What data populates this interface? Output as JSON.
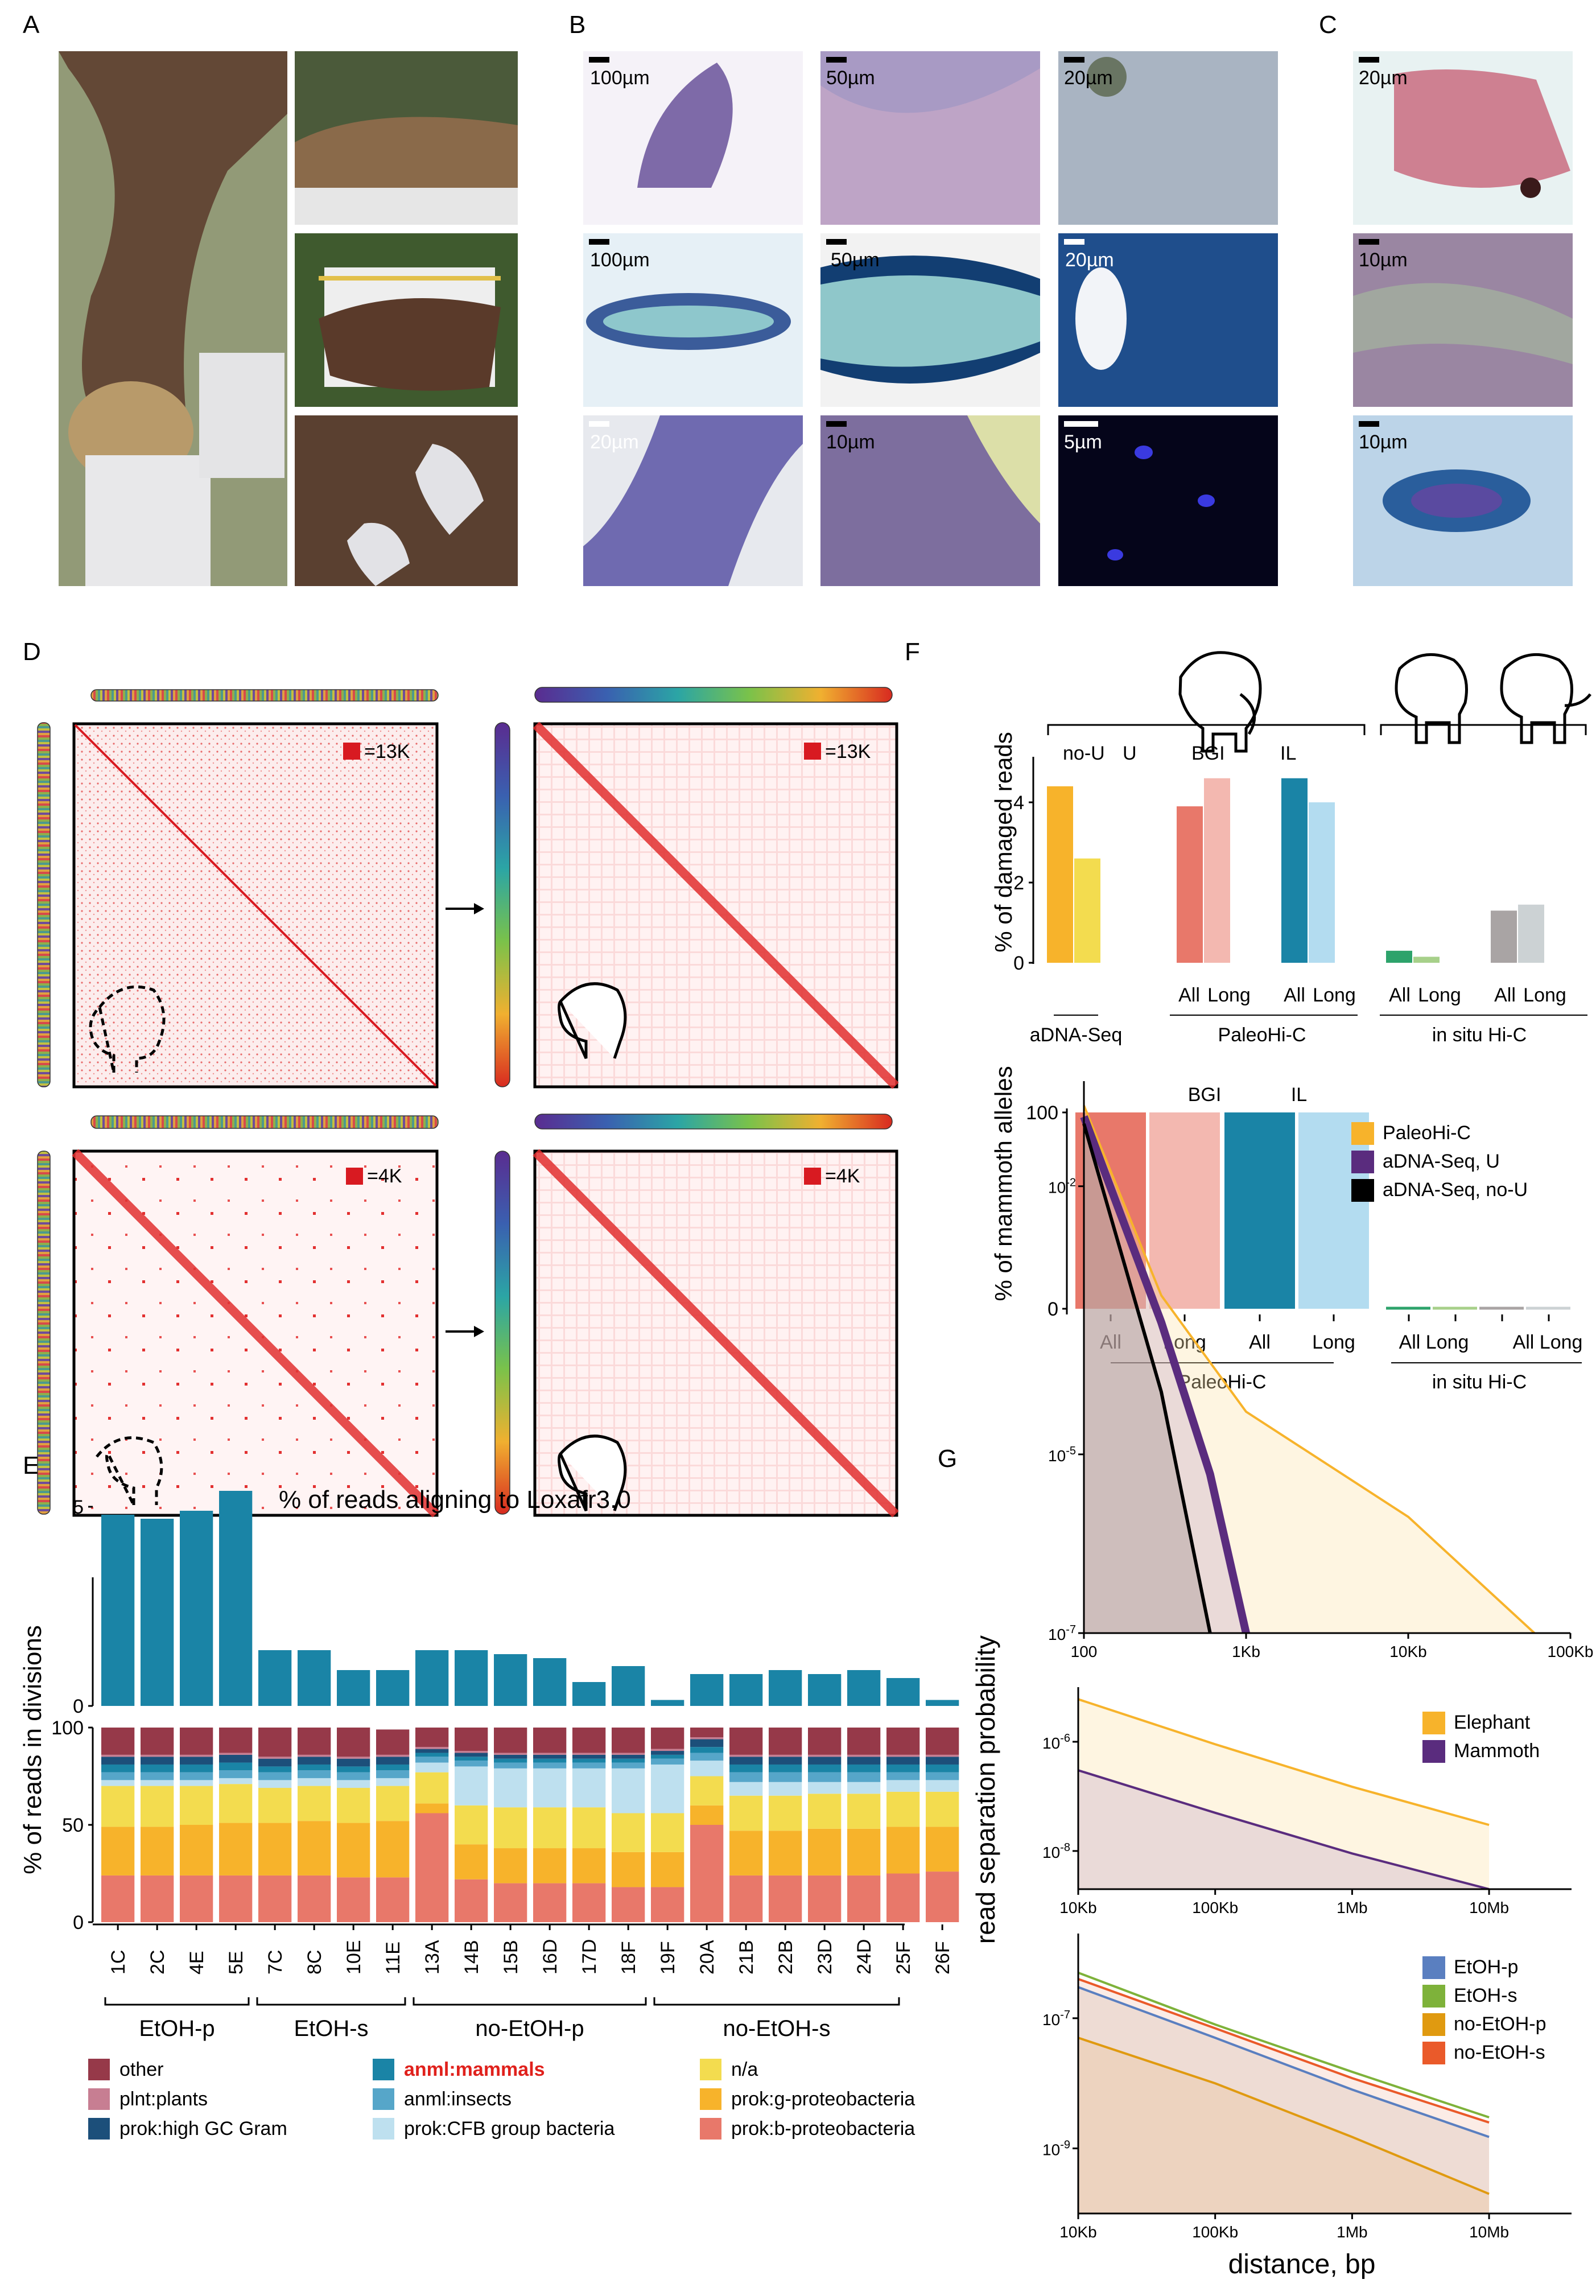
{
  "panel_labels": {
    "A": "A",
    "B": "B",
    "C": "C",
    "D": "D",
    "E": "E",
    "F": "F",
    "G": "G"
  },
  "colors": {
    "orange": "#F7B32B",
    "yellow": "#F3DC4F",
    "salmon": "#E8786A",
    "pink": "#F3B8B0",
    "teal": "#1A84A6",
    "lightblue": "#B3DCF0",
    "green": "#2DA36B",
    "lightgreen": "#A7D08A",
    "grey": "#A9A4A4",
    "lightgrey": "#CCD2D4",
    "maroon": "#963949",
    "purple": "#5A2C7E",
    "hic_red": "#D81A21",
    "blue": "#5A7FC0",
    "olive": "#7EB23A",
    "red_orange": "#EA5A2A"
  },
  "panelB": {
    "scalebars": [
      "100µm",
      "50µm",
      "20µm",
      "100µm",
      "50µm",
      "20µm",
      "20µm",
      "10µm",
      "5µm"
    ]
  },
  "panelC": {
    "scalebars": [
      "20µm",
      "10µm",
      "10µm"
    ]
  },
  "panelD": {
    "legend": [
      "=13K",
      "=13K",
      "=4K",
      "=4K"
    ]
  },
  "panelE": {
    "top_title": "% of reads aligning to Loxafr3.0",
    "ylabel": "% of reads in divisions",
    "groups": [
      "EtOH-p",
      "EtOH-s",
      "no-EtOH-p",
      "no-EtOH-s"
    ],
    "legend": [
      {
        "label": "other",
        "color": "#963949",
        "highlight": false
      },
      {
        "label": "plnt:plants",
        "color": "#C77E92",
        "highlight": false
      },
      {
        "label": "prok:high GC Gram",
        "color": "#1C4F7A",
        "highlight": false
      },
      {
        "label": "anml:mammals",
        "color": "#1A84A6",
        "highlight": true
      },
      {
        "label": "anml:insects",
        "color": "#56A6C9",
        "highlight": false
      },
      {
        "label": "prok:CFB group bacteria",
        "color": "#BEE0EF",
        "highlight": false
      },
      {
        "label": "n/a",
        "color": "#F3DC4F",
        "highlight": false
      },
      {
        "label": "prok:g-proteobacteria",
        "color": "#F7B32B",
        "highlight": false
      },
      {
        "label": "prok:b-proteobacteria",
        "color": "#E8786A",
        "highlight": false
      }
    ]
  },
  "panelF": {
    "top_ylabel": "% of damaged reads",
    "bottom_ylabel": "% of mammoth alleles",
    "subgroup_labels": [
      "no-U",
      "U",
      "BGI",
      "IL"
    ],
    "bottom_subgroup_labels": [
      "BGI",
      "IL"
    ],
    "top_xlabels": [
      "All",
      "Long",
      "All",
      "Long",
      "All",
      "Long",
      "All",
      "Long"
    ],
    "top_groups": [
      "aDNA-Seq",
      "PaleoHi-C",
      "in situ Hi-C"
    ],
    "bottom_xlabels": [
      "All",
      "Long",
      "All",
      "Long",
      "All",
      "Long",
      "All",
      "Long"
    ],
    "bottom_groups": [
      "PaleoHi-C",
      "in situ Hi-C"
    ]
  },
  "panelG": {
    "ylabel": "read separation probability",
    "xlabel": "distance, bp",
    "legend1": [
      "PaleoHi-C",
      "aDNA-Seq, U",
      "aDNA-Seq, no-U"
    ],
    "legend2": [
      "Elephant",
      "Mammoth"
    ],
    "legend3": [
      "EtOH-p",
      "EtOH-s",
      "no-EtOH-p",
      "no-EtOH-s"
    ],
    "x1": [
      "100",
      "1Kb",
      "10Kb",
      "100Kb"
    ],
    "y1": [
      {
        "b": "10",
        "e": "-2"
      },
      {
        "b": "10",
        "e": "-5"
      },
      {
        "b": "10",
        "e": "-7"
      }
    ],
    "x2": [
      "10Kb",
      "100Kb",
      "1Mb",
      "10Mb"
    ],
    "y2": [
      {
        "b": "10",
        "e": "-6"
      },
      {
        "b": "10",
        "e": "-8"
      }
    ],
    "x3": [
      "10Kb",
      "100Kb",
      "1Mb",
      "10Mb"
    ],
    "y3": [
      {
        "b": "10",
        "e": "-7"
      },
      {
        "b": "10",
        "e": "-9"
      }
    ]
  },
  "chart_data": [
    {
      "type": "bar",
      "panel": "E-top",
      "title": "% of reads aligning to Loxafr3.0",
      "categories": [
        "1C",
        "2C",
        "4E",
        "5E",
        "7C",
        "8C",
        "10E",
        "11E",
        "13A",
        "14B",
        "15B",
        "16D",
        "17D",
        "18F",
        "19F",
        "20A",
        "21B",
        "22B",
        "23D",
        "24D",
        "25F",
        "26F"
      ],
      "values": [
        4.8,
        4.7,
        4.9,
        5.4,
        1.4,
        1.4,
        0.9,
        0.9,
        1.4,
        1.4,
        1.3,
        1.2,
        0.6,
        1.0,
        0.15,
        0.8,
        0.8,
        0.9,
        0.8,
        0.9,
        0.7,
        0.15
      ],
      "ylim": [
        0,
        6
      ],
      "yticks": [
        0,
        5
      ]
    },
    {
      "type": "bar",
      "stacked": true,
      "panel": "E-bottom",
      "ylabel": "% of reads in divisions",
      "categories": [
        "1C",
        "2C",
        "4E",
        "5E",
        "7C",
        "8C",
        "10E",
        "11E",
        "13A",
        "14B",
        "15B",
        "16D",
        "17D",
        "18F",
        "19F",
        "20A",
        "21B",
        "22B",
        "23D",
        "24D",
        "25F",
        "26F"
      ],
      "ylim": [
        0,
        100
      ],
      "yticks": [
        0,
        50,
        100
      ],
      "series": [
        {
          "name": "prok:b-proteobacteria",
          "values": [
            24,
            24,
            24,
            24,
            24,
            24,
            23,
            23,
            56,
            22,
            20,
            20,
            20,
            18,
            18,
            50,
            24,
            24,
            24,
            24,
            25,
            26
          ]
        },
        {
          "name": "prok:g-proteobacteria",
          "values": [
            25,
            25,
            26,
            27,
            27,
            28,
            28,
            29,
            5,
            18,
            18,
            18,
            18,
            18,
            18,
            10,
            23,
            23,
            24,
            24,
            24,
            23
          ]
        },
        {
          "name": "n/a",
          "values": [
            21,
            21,
            20,
            20,
            18,
            18,
            18,
            18,
            16,
            20,
            21,
            21,
            21,
            20,
            20,
            15,
            18,
            18,
            18,
            18,
            18,
            18
          ]
        },
        {
          "name": "prok:CFB group bacteria",
          "values": [
            3,
            3,
            3,
            3,
            4,
            4,
            4,
            4,
            5,
            20,
            20,
            20,
            20,
            23,
            25,
            8,
            7,
            7,
            6,
            6,
            6,
            6
          ]
        },
        {
          "name": "anml:insects",
          "values": [
            4,
            4,
            4,
            4,
            4,
            4,
            4,
            4,
            3,
            3,
            3,
            3,
            3,
            3,
            3,
            4,
            5,
            5,
            5,
            5,
            4,
            4
          ]
        },
        {
          "name": "anml:mammals",
          "values": [
            4,
            4,
            4,
            4,
            3,
            3,
            3,
            3,
            2,
            2,
            2,
            2,
            2,
            2,
            2,
            3,
            4,
            4,
            4,
            4,
            4,
            4
          ]
        },
        {
          "name": "prok:high GC Gram",
          "values": [
            4,
            4,
            4,
            4,
            4,
            4,
            4,
            4,
            2,
            2,
            2,
            2,
            2,
            2,
            2,
            4,
            4,
            4,
            4,
            4,
            4,
            4
          ]
        },
        {
          "name": "plnt:plants",
          "values": [
            1,
            1,
            1,
            1,
            1,
            1,
            1,
            1,
            1,
            1,
            1,
            1,
            1,
            1,
            1,
            1,
            1,
            1,
            1,
            1,
            1,
            1
          ]
        },
        {
          "name": "other",
          "values": [
            14,
            14,
            14,
            13,
            15,
            14,
            15,
            13,
            10,
            12,
            13,
            13,
            13,
            13,
            11,
            5,
            14,
            14,
            14,
            14,
            14,
            14
          ]
        }
      ]
    },
    {
      "type": "bar",
      "panel": "F-top",
      "ylabel": "% of damaged reads",
      "values": [
        4.4,
        2.6,
        3.9,
        4.6,
        4.6,
        4.0,
        0.3,
        0.15,
        1.3,
        1.45
      ],
      "ylim": [
        0,
        5
      ],
      "yticks": [
        0,
        2,
        4
      ]
    },
    {
      "type": "bar",
      "panel": "F-bottom",
      "ylabel": "% of mammoth alleles",
      "values": [
        100,
        100,
        100,
        100,
        1,
        1,
        1,
        1
      ],
      "ylim": [
        0,
        100
      ],
      "yticks": [
        0,
        100
      ]
    },
    {
      "type": "line",
      "panel": "G-1",
      "series": [
        {
          "name": "PaleoHi-C",
          "x": [
            100,
            300,
            1000,
            10000,
            60000
          ],
          "y": [
            0.08,
            0.0006,
            3e-05,
            2e-06,
            1e-07
          ]
        },
        {
          "name": "aDNA-Seq, U",
          "x": [
            100,
            300,
            600,
            1000
          ],
          "y": [
            0.06,
            0.0003,
            6e-06,
            1e-07
          ]
        },
        {
          "name": "aDNA-Seq, no-U",
          "x": [
            100,
            300,
            600
          ],
          "y": [
            0.05,
            5e-05,
            1e-07
          ]
        }
      ]
    },
    {
      "type": "line",
      "panel": "G-2",
      "series": [
        {
          "name": "Elephant",
          "x": [
            10000,
            100000,
            1000000,
            10000000
          ],
          "y": [
            6e-06,
            9e-07,
            1.5e-07,
            3e-08
          ]
        },
        {
          "name": "Mammoth",
          "x": [
            10000,
            100000,
            1000000,
            10000000
          ],
          "y": [
            3e-07,
            5e-08,
            9e-09,
            1.5e-09
          ]
        }
      ]
    },
    {
      "type": "line",
      "panel": "G-3",
      "series": [
        {
          "name": "EtOH-p",
          "x": [
            10000,
            100000,
            1000000,
            10000000
          ],
          "y": [
            3e-07,
            5e-08,
            8e-09,
            1.5e-09
          ]
        },
        {
          "name": "EtOH-s",
          "x": [
            10000,
            100000,
            1000000,
            10000000
          ],
          "y": [
            5e-07,
            8e-08,
            1.5e-08,
            3e-09
          ]
        },
        {
          "name": "no-EtOH-p",
          "x": [
            10000,
            100000,
            1000000,
            10000000
          ],
          "y": [
            5e-08,
            1e-08,
            1.5e-09,
            2e-10
          ]
        },
        {
          "name": "no-EtOH-s",
          "x": [
            10000,
            100000,
            1000000,
            10000000
          ],
          "y": [
            4e-07,
            7e-08,
            1.2e-08,
            2.5e-09
          ]
        }
      ]
    }
  ]
}
